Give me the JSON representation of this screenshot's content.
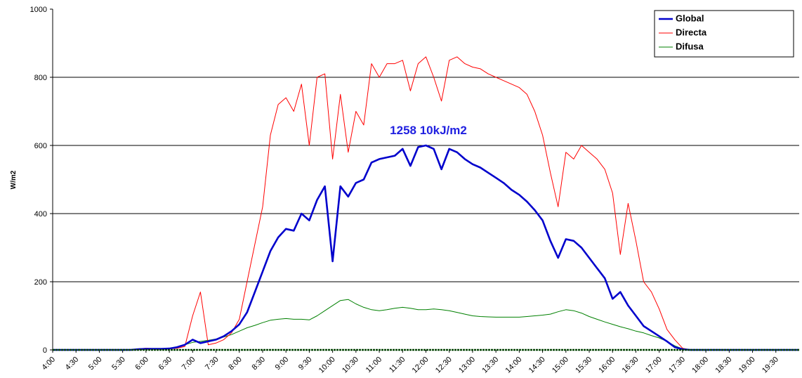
{
  "chart_data": {
    "type": "line",
    "y_label": "W/m2",
    "annotation": "1258  10kJ/m2",
    "annotation_color": "#1f1fe0",
    "categories": [
      "4:00",
      null,
      null,
      "4:30",
      null,
      null,
      "5:00",
      null,
      null,
      "5:30",
      null,
      null,
      "6:00",
      null,
      null,
      "6:30",
      null,
      null,
      "7:00",
      null,
      null,
      "7:30",
      null,
      null,
      "8:00",
      null,
      null,
      "8:30",
      null,
      null,
      "9:00",
      null,
      null,
      "9:30",
      null,
      null,
      "10:00",
      null,
      null,
      "10:30",
      null,
      null,
      "11:00",
      null,
      null,
      "11:30",
      null,
      null,
      "12:00",
      null,
      null,
      "12:30",
      null,
      null,
      "13:00",
      null,
      null,
      "13:30",
      null,
      null,
      "14:00",
      null,
      null,
      "14:30",
      null,
      null,
      "15:00",
      null,
      null,
      "15:30",
      null,
      null,
      "16:00",
      null,
      null,
      "16:30",
      null,
      null,
      "17:00",
      null,
      null,
      "17:30",
      null,
      null,
      "18:00",
      null,
      null,
      "18:30",
      null,
      null,
      "19:00",
      null,
      null,
      "19:30",
      null,
      null,
      null
    ],
    "series": [
      {
        "name": "Global",
        "color": "#0000cc",
        "values": [
          0,
          0,
          0,
          0,
          0,
          0,
          0,
          0,
          0,
          0,
          0,
          2,
          3,
          3,
          3,
          4,
          8,
          15,
          30,
          20,
          25,
          30,
          40,
          55,
          75,
          110,
          170,
          230,
          290,
          330,
          355,
          350,
          400,
          380,
          440,
          480,
          260,
          480,
          450,
          490,
          500,
          550,
          560,
          565,
          570,
          590,
          540,
          595,
          600,
          590,
          530,
          590,
          580,
          560,
          545,
          535,
          520,
          505,
          490,
          470,
          455,
          435,
          410,
          380,
          320,
          270,
          325,
          320,
          300,
          270,
          240,
          210,
          150,
          170,
          130,
          100,
          70,
          55,
          40,
          25,
          8,
          2,
          0,
          0,
          0,
          0,
          0,
          0,
          0,
          0,
          0,
          0,
          0,
          0,
          0,
          0,
          0
        ]
      },
      {
        "name": "Directa",
        "color": "#ff0000",
        "values": [
          0,
          0,
          0,
          0,
          0,
          0,
          0,
          0,
          0,
          0,
          0,
          3,
          5,
          4,
          4,
          3,
          5,
          10,
          100,
          170,
          15,
          20,
          30,
          50,
          90,
          200,
          310,
          420,
          630,
          720,
          740,
          700,
          780,
          600,
          800,
          810,
          560,
          750,
          580,
          700,
          660,
          840,
          800,
          840,
          840,
          850,
          760,
          840,
          860,
          800,
          730,
          850,
          860,
          840,
          830,
          825,
          810,
          800,
          790,
          780,
          770,
          750,
          700,
          630,
          520,
          420,
          580,
          560,
          600,
          580,
          560,
          530,
          460,
          280,
          430,
          320,
          200,
          170,
          120,
          60,
          30,
          5,
          0,
          0,
          0,
          0,
          0,
          0,
          0,
          0,
          0,
          0,
          0,
          0,
          0,
          0,
          0
        ]
      },
      {
        "name": "Difusa",
        "color": "#008000",
        "values": [
          0,
          0,
          0,
          0,
          0,
          0,
          0,
          0,
          0,
          0,
          0,
          2,
          3,
          3,
          3,
          3,
          8,
          15,
          22,
          25,
          28,
          32,
          38,
          45,
          55,
          65,
          72,
          80,
          87,
          90,
          92,
          90,
          90,
          88,
          100,
          115,
          130,
          145,
          148,
          135,
          125,
          118,
          115,
          118,
          122,
          125,
          122,
          118,
          118,
          120,
          118,
          115,
          110,
          105,
          100,
          98,
          97,
          96,
          96,
          96,
          96,
          98,
          100,
          102,
          105,
          112,
          118,
          115,
          108,
          98,
          90,
          82,
          75,
          68,
          62,
          55,
          50,
          42,
          35,
          25,
          12,
          3,
          0,
          0,
          0,
          0,
          0,
          0,
          0,
          0,
          0,
          0,
          0,
          0,
          0,
          0,
          0
        ]
      }
    ],
    "ylim": [
      0,
      1000
    ],
    "yticks": [
      0,
      200,
      400,
      600,
      800,
      1000
    ],
    "grid": true,
    "legend": "top-right"
  }
}
